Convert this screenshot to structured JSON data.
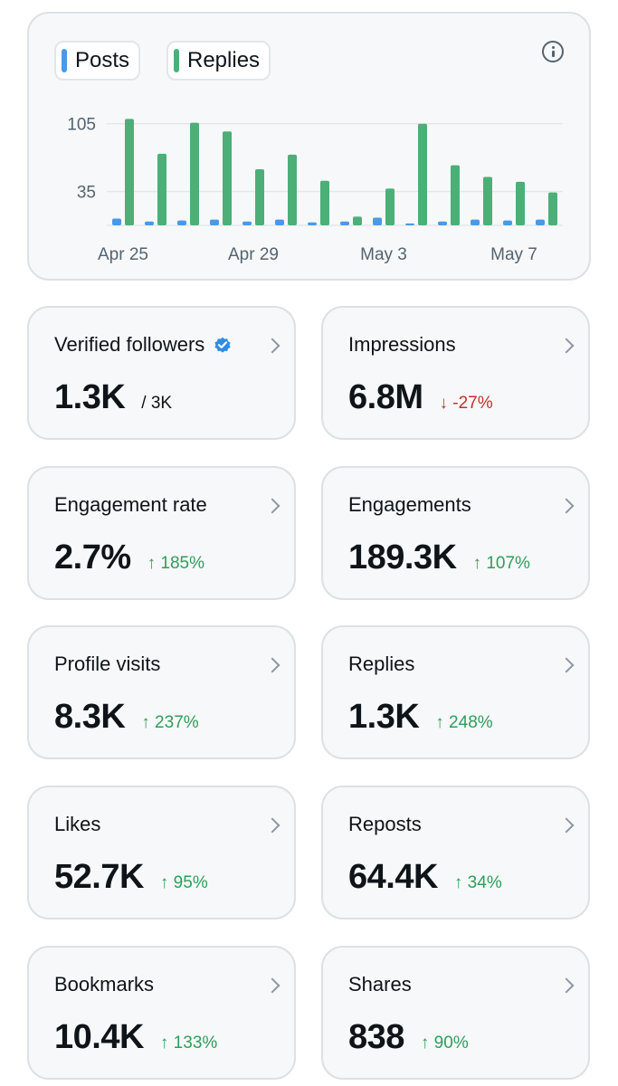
{
  "legend": {
    "posts_label": "Posts",
    "replies_label": "Replies",
    "posts_color": "#4a99e9",
    "replies_color": "#4caf78"
  },
  "info_icon": "info-circle-icon",
  "chart_data": {
    "type": "bar",
    "categories": [
      "Apr 25",
      "Apr 26",
      "Apr 27",
      "Apr 28",
      "Apr 29",
      "Apr 30",
      "May 1",
      "May 2",
      "May 3",
      "May 4",
      "May 5",
      "May 6",
      "May 7",
      "May 8"
    ],
    "x_tick_labels": [
      "Apr 25",
      "Apr 29",
      "May 3",
      "May 7"
    ],
    "y_tick_labels": [
      35,
      105
    ],
    "ylim": [
      0,
      115
    ],
    "grid": true,
    "series": [
      {
        "name": "Posts",
        "color": "#4a99e9",
        "values": [
          7,
          4,
          5,
          6,
          4,
          6,
          3,
          4,
          8,
          2,
          4,
          6,
          5,
          6
        ]
      },
      {
        "name": "Replies",
        "color": "#4caf78",
        "values": [
          110,
          74,
          106,
          97,
          58,
          73,
          46,
          9,
          38,
          105,
          62,
          50,
          45,
          34
        ]
      }
    ]
  },
  "metrics": [
    {
      "title": "Verified followers",
      "value": "1.3K",
      "sub": "/ 3K",
      "dir": "neutral",
      "verified_icon": "verified-badge-icon"
    },
    {
      "title": "Impressions",
      "value": "6.8M",
      "sub": "↓ -27%",
      "dir": "down"
    },
    {
      "title": "Engagement rate",
      "value": "2.7%",
      "sub": "↑ 185%",
      "dir": "up"
    },
    {
      "title": "Engagements",
      "value": "189.3K",
      "sub": "↑ 107%",
      "dir": "up"
    },
    {
      "title": "Profile visits",
      "value": "8.3K",
      "sub": "↑ 237%",
      "dir": "up"
    },
    {
      "title": "Replies",
      "value": "1.3K",
      "sub": "↑ 248%",
      "dir": "up"
    },
    {
      "title": "Likes",
      "value": "52.7K",
      "sub": "↑ 95%",
      "dir": "up"
    },
    {
      "title": "Reposts",
      "value": "64.4K",
      "sub": "↑ 34%",
      "dir": "up"
    },
    {
      "title": "Bookmarks",
      "value": "10.4K",
      "sub": "↑ 133%",
      "dir": "up"
    },
    {
      "title": "Shares",
      "value": "838",
      "sub": "↑ 90%",
      "dir": "up"
    }
  ]
}
